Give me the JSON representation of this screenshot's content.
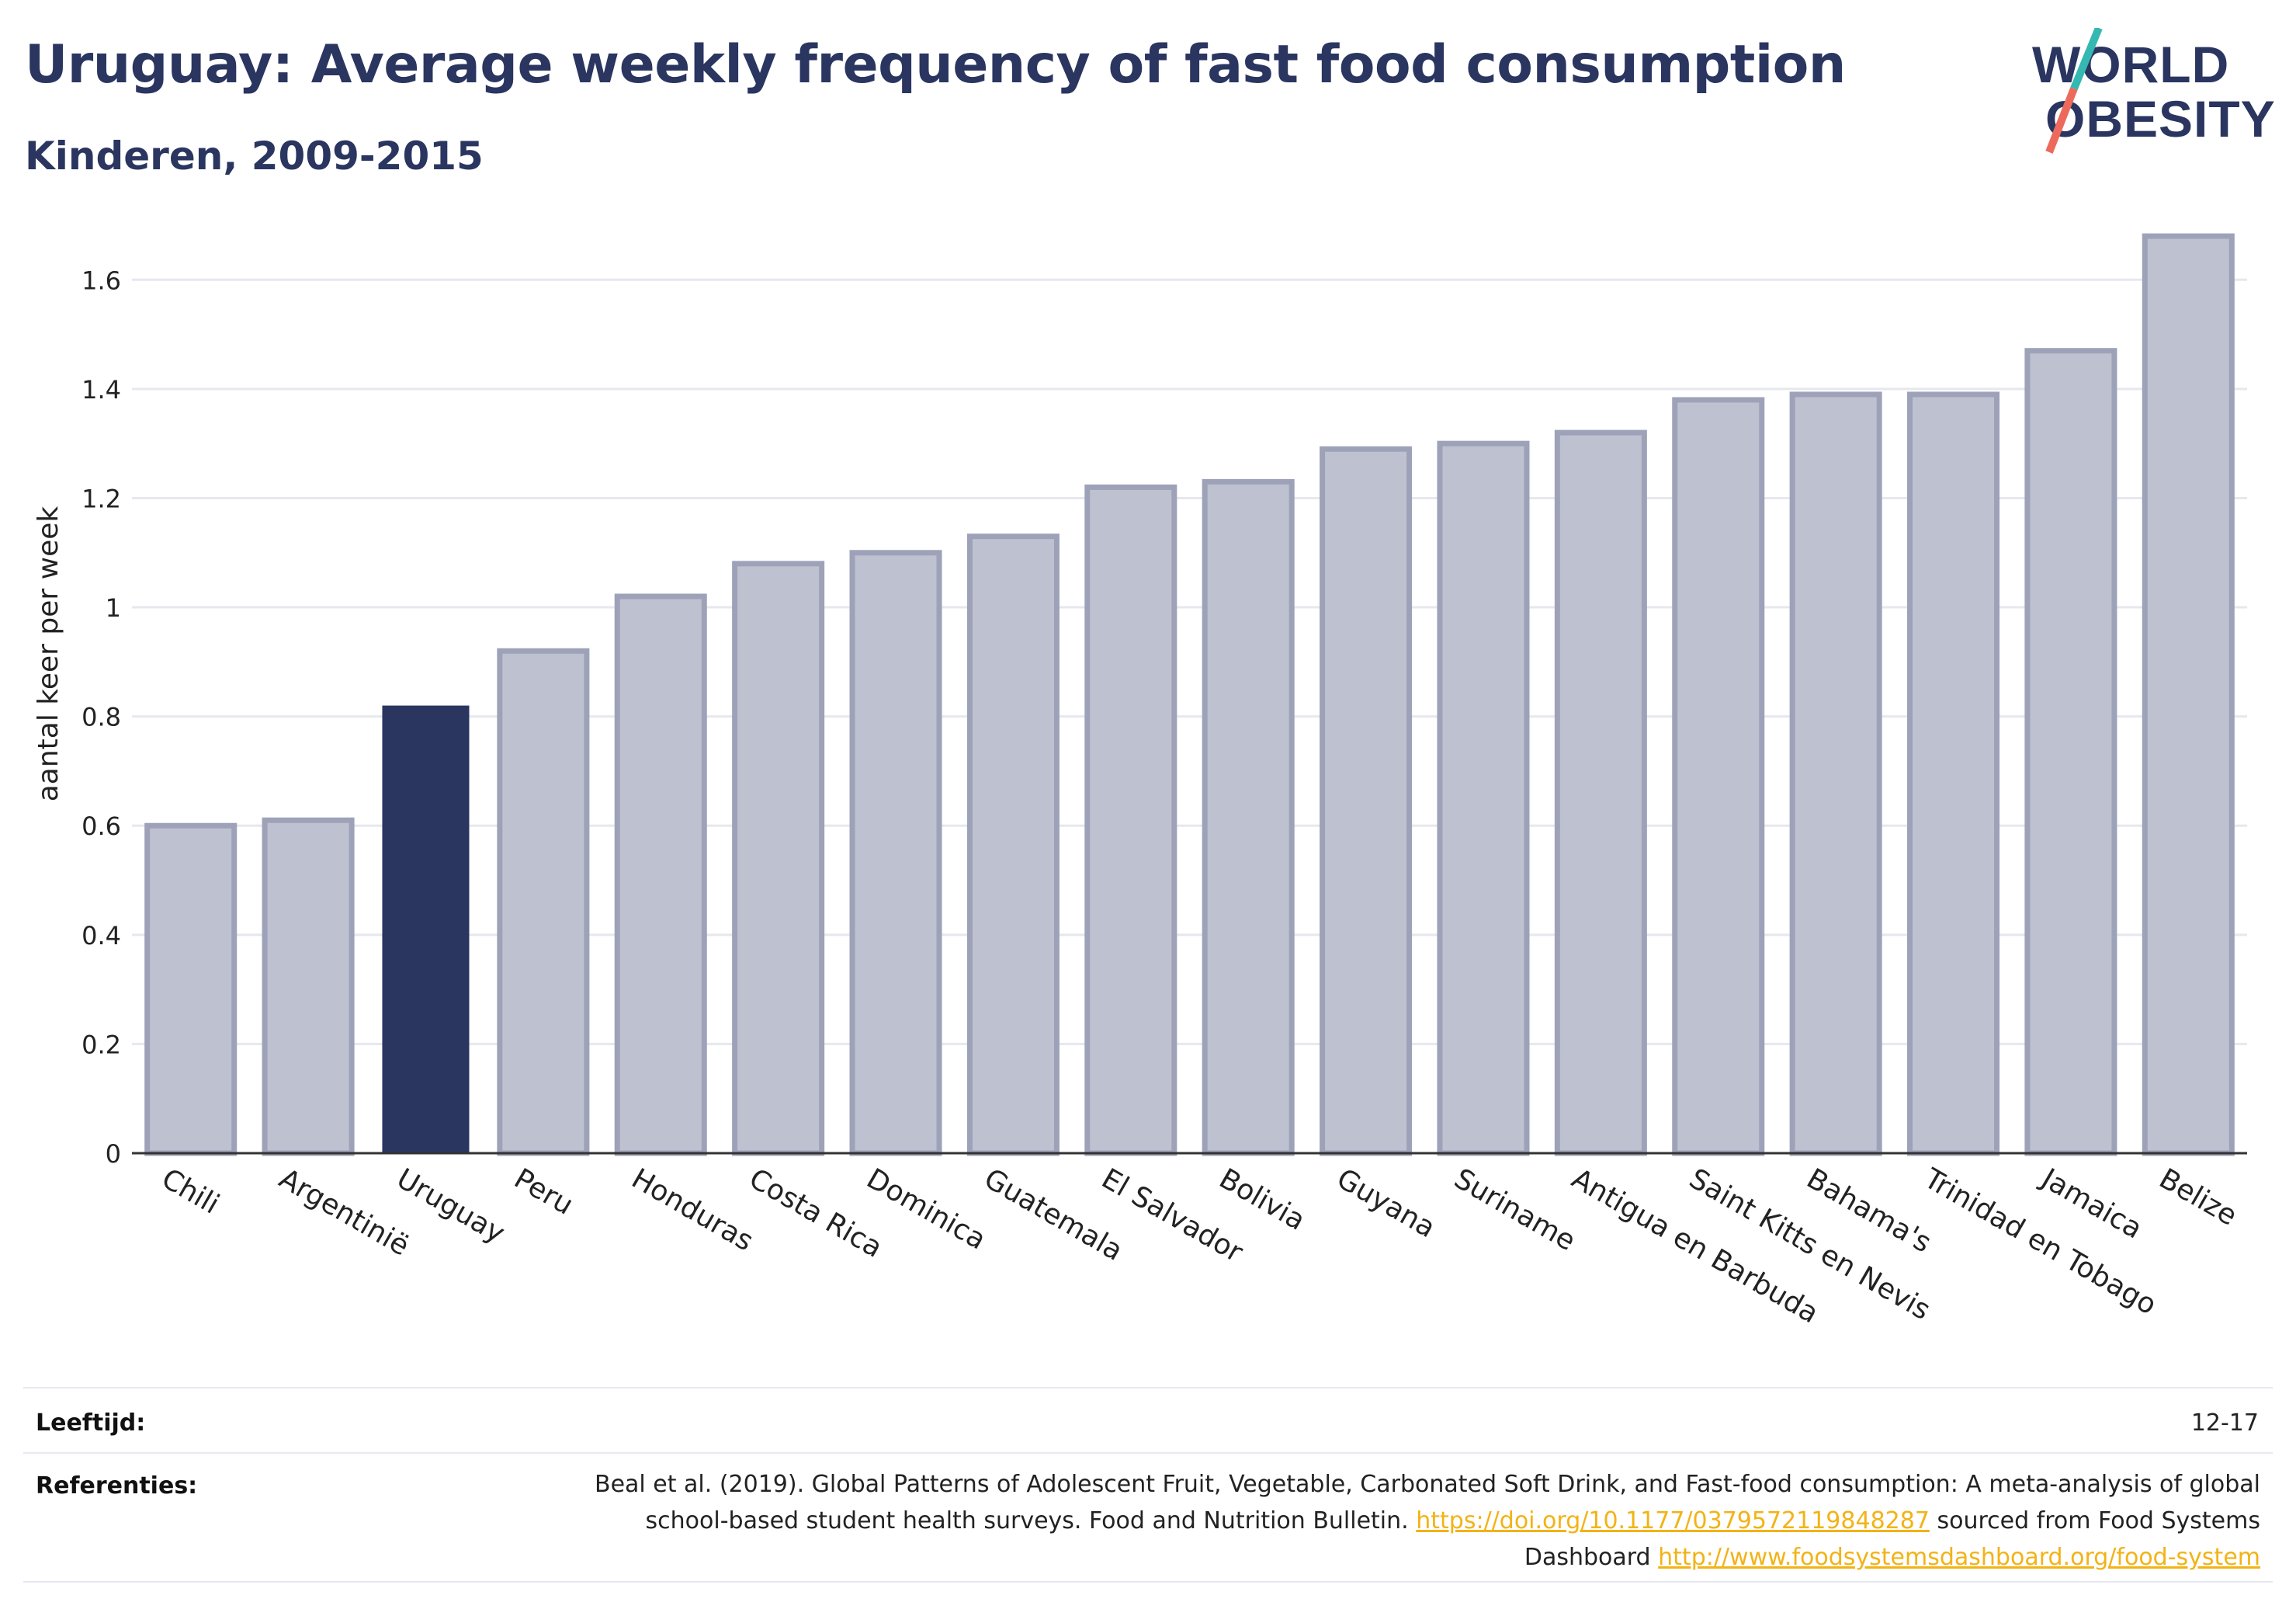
{
  "header": {
    "title": "Uruguay: Average weekly frequency of fast food consumption",
    "subtitle": "Kinderen, 2009-2015",
    "logo_line1": "WORLD",
    "logo_line2": "OBESITY"
  },
  "chart_data": {
    "type": "bar",
    "ylabel": "aantal keer per week",
    "ylim": [
      0,
      1.7
    ],
    "yticks": [
      0,
      0.2,
      0.4,
      0.6,
      0.8,
      1,
      1.2,
      1.4,
      1.6
    ],
    "ytick_labels": [
      "0",
      "0.2",
      "0.4",
      "0.6",
      "0.8",
      "1",
      "1.2",
      "1.4",
      "1.6"
    ],
    "grid": true,
    "highlight": "Uruguay",
    "colors": {
      "highlight": "#2a3560",
      "bar_fill": "#bec1cf",
      "bar_stroke": "#9da2b9",
      "grid": "#e6e8ee",
      "axis": "#333333"
    },
    "categories": [
      "Chili",
      "Argentinië",
      "Uruguay",
      "Peru",
      "Honduras",
      "Costa Rica",
      "Dominica",
      "Guatemala",
      "El Salvador",
      "Bolivia",
      "Guyana",
      "Suriname",
      "Antigua en Barbuda",
      "Saint Kitts en Nevis",
      "Bahama's",
      "Trinidad en Tobago",
      "Jamaica",
      "Belize"
    ],
    "values": [
      0.6,
      0.61,
      0.82,
      0.92,
      1.02,
      1.08,
      1.1,
      1.13,
      1.22,
      1.23,
      1.29,
      1.3,
      1.32,
      1.38,
      1.39,
      1.39,
      1.47,
      1.68
    ]
  },
  "footer": {
    "age_label": "Leeftijd:",
    "age_value": "12-17",
    "ref_label": "Referenties:",
    "ref_text_1": "Beal et al. (2019). Global Patterns of Adolescent Fruit, Vegetable, Carbonated Soft Drink, and Fast-food consumption: A meta-analysis of global school-based student health surveys. Food and Nutrition Bulletin.",
    "ref_link_1": "https://doi.org/10.1177/0379572119848287",
    "ref_text_2": "sourced from Food Systems Dashboard",
    "ref_link_2": "http://www.foodsystemsdashboard.org/food-system"
  }
}
